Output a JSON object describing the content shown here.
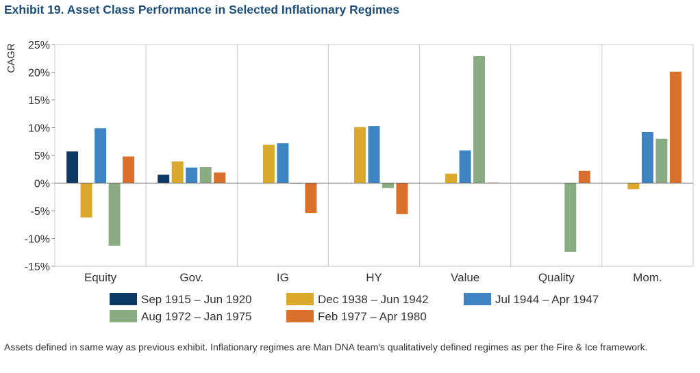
{
  "title": "Exhibit 19. Asset Class Performance in Selected Inflationary Regimes",
  "footnote": "Assets defined in same way as previous exhibit. Inflationary regimes are Man DNA team's qualitatively defined regimes as per the Fire & Ice framework.",
  "chart_data": {
    "type": "bar",
    "ylabel": "CAGR",
    "xlabel": "",
    "ylim": [
      -15,
      25
    ],
    "yticks": [
      "-15%",
      "-10%",
      "-5%",
      "0%",
      "5%",
      "10%",
      "15%",
      "20%",
      "25%"
    ],
    "ytick_values": [
      -15,
      -10,
      -5,
      0,
      5,
      10,
      15,
      20,
      25
    ],
    "grid": "vertical separators between categories",
    "legend_position": "bottom",
    "categories": [
      "Equity",
      "Gov.",
      "IG",
      "HY",
      "Value",
      "Quality",
      "Mom."
    ],
    "series": [
      {
        "name": "Sep 1915 – Jun 1920",
        "color": "#0d3a64",
        "values": [
          5.7,
          1.5,
          null,
          null,
          null,
          null,
          null
        ]
      },
      {
        "name": "Dec 1938 – Jun 1942",
        "color": "#dbaa2c",
        "values": [
          -6.2,
          3.9,
          6.9,
          10.1,
          1.7,
          null,
          -1.1
        ]
      },
      {
        "name": "Jul 1944 – Apr 1947",
        "color": "#3f84c2",
        "values": [
          9.9,
          2.8,
          7.2,
          10.3,
          5.9,
          null,
          9.2
        ]
      },
      {
        "name": "Aug 1972 – Jan 1975",
        "color": "#8aac82",
        "values": [
          -11.3,
          2.9,
          -0.1,
          -0.9,
          22.9,
          -12.4,
          8.0
        ]
      },
      {
        "name": "Feb 1977 – Apr 1980",
        "color": "#d9712c",
        "values": [
          4.8,
          1.9,
          -5.4,
          -5.6,
          0.1,
          2.2,
          20.1
        ]
      }
    ]
  }
}
